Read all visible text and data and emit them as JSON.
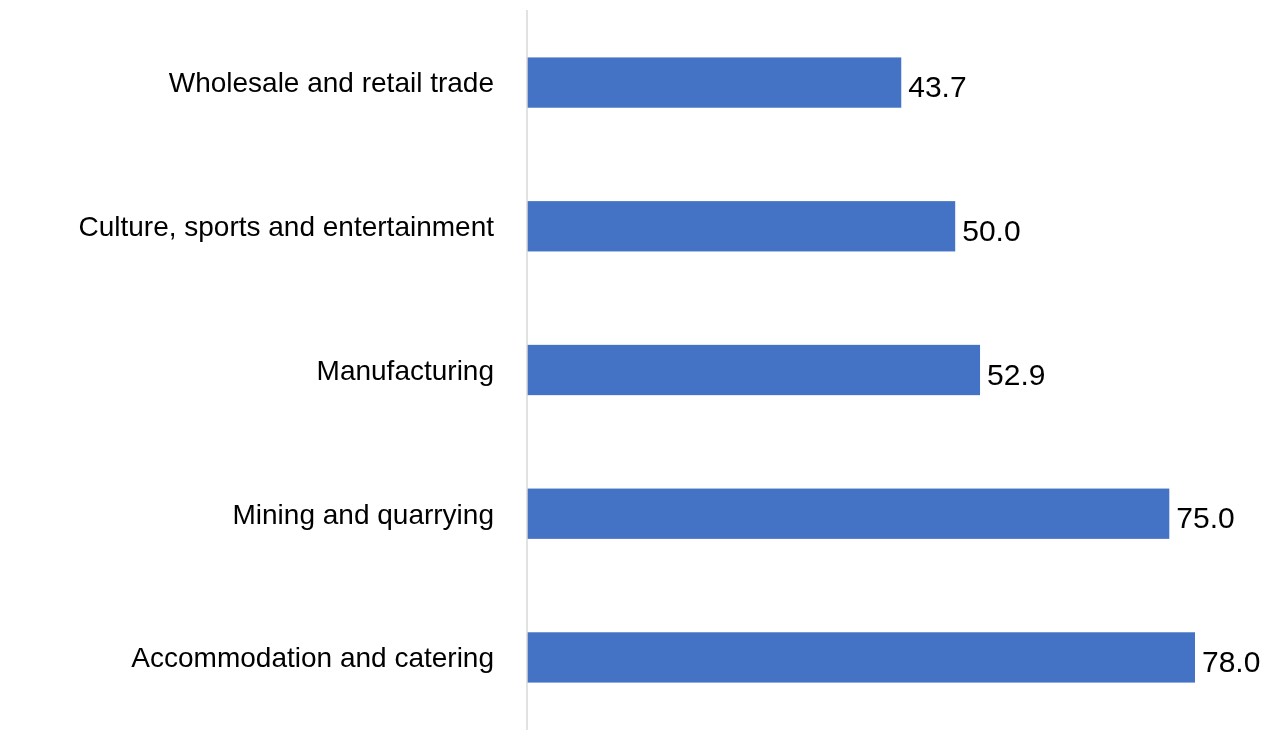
{
  "chart_data": {
    "type": "bar",
    "orientation": "horizontal",
    "categories": [
      "Wholesale and retail trade",
      "Culture, sports and entertainment",
      "Manufacturing",
      "Mining and quarrying",
      "Accommodation and catering"
    ],
    "values": [
      43.7,
      50.0,
      52.9,
      75.0,
      78.0
    ],
    "value_labels": [
      "43.7",
      "50.0",
      "52.9",
      "75.0",
      "78.0"
    ],
    "color": "#4472c4"
  }
}
